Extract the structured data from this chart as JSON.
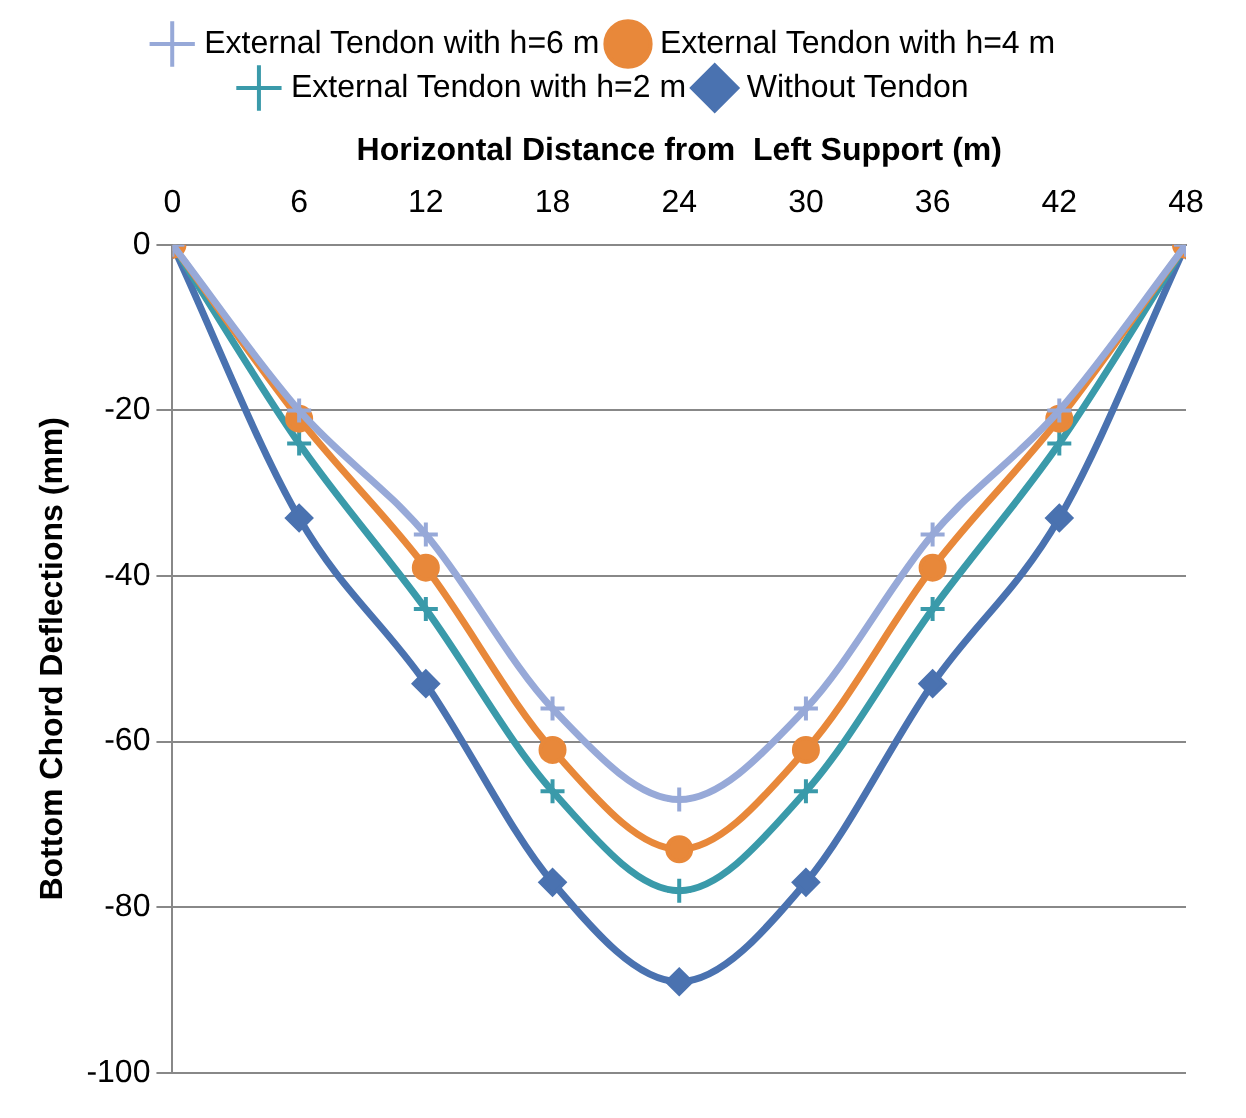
{
  "chart_data": {
    "type": "line",
    "xlabel": "Horizontal Distance from  Left Support (m)",
    "ylabel": "Bottom Chord Deflections (mm)",
    "x": [
      0,
      6,
      12,
      18,
      24,
      30,
      36,
      42,
      48
    ],
    "series": [
      {
        "name": "Without Tendon",
        "color": "#4a72b0",
        "marker": "diamond",
        "values": [
          0,
          -33,
          -53,
          -77,
          -89,
          -77,
          -53,
          -33,
          0
        ]
      },
      {
        "name": "External Tendon with h=2 m",
        "color": "#3a9aaa",
        "marker": "cross",
        "values": [
          0,
          -24,
          -44,
          -66,
          -78,
          -66,
          -44,
          -24,
          0
        ]
      },
      {
        "name": "External Tendon with h=4 m",
        "color": "#e8883a",
        "marker": "circle",
        "values": [
          0,
          -21,
          -39,
          -61,
          -73,
          -61,
          -39,
          -21,
          0
        ]
      },
      {
        "name": "External Tendon with h=6 m",
        "color": "#97a9d8",
        "marker": "cross",
        "values": [
          0,
          -20,
          -35,
          -56,
          -67,
          -56,
          -35,
          -20,
          0
        ]
      }
    ],
    "xlim": [
      0,
      48
    ],
    "xticks": [
      0,
      6,
      12,
      18,
      24,
      30,
      36,
      42,
      48
    ],
    "ylim": [
      -100,
      0
    ],
    "yticks": [
      -100,
      -80,
      -60,
      -40,
      -20,
      0
    ],
    "grid": "y",
    "legend": "top",
    "line_style": "solid"
  }
}
